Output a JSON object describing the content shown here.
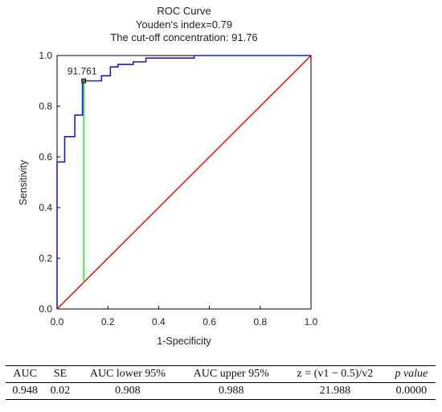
{
  "chart_data": {
    "type": "line",
    "title": "ROC Curve",
    "subtitle_lines": [
      "Youden's index=0.79",
      "The cut-off concentration: 91.76"
    ],
    "xlabel": "1-Specificity",
    "ylabel": "Sensitivity",
    "xlim": [
      0.0,
      1.0
    ],
    "ylim": [
      0.0,
      1.0
    ],
    "xticks": [
      "0.0",
      "0.2",
      "0.4",
      "0.6",
      "0.8",
      "1.0"
    ],
    "yticks": [
      "0.0",
      "0.2",
      "0.4",
      "0.6",
      "0.8",
      "1.0"
    ],
    "grid": false,
    "series": [
      {
        "color": "#1f1fbf",
        "x": [
          0,
          0,
          0.01,
          0.01,
          0.03,
          0.03,
          0.07,
          0.07,
          0.1,
          0.1,
          0.175,
          0.175,
          0.21,
          0.21,
          0.24,
          0.24,
          0.3,
          0.3,
          0.35,
          0.35,
          0.54,
          0.54,
          1.0
        ],
        "y": [
          0,
          0.58,
          0.58,
          0.58,
          0.58,
          0.68,
          0.68,
          0.765,
          0.765,
          0.9,
          0.9,
          0.92,
          0.92,
          0.955,
          0.955,
          0.965,
          0.965,
          0.975,
          0.975,
          0.99,
          0.99,
          1.0,
          1.0
        ]
      },
      {
        "color": "#e02020",
        "x": [
          0,
          1
        ],
        "y": [
          0,
          1
        ]
      }
    ],
    "cutoff": {
      "label": "91.761",
      "x": 0.105,
      "y": 0.9,
      "color": "#33dd33"
    }
  },
  "table": {
    "headers": [
      "AUC",
      "SE",
      "AUC lower 95%",
      "AUC upper 95%",
      "z = (v1 − 0.5)/v2",
      "p value"
    ],
    "row": [
      "0.948",
      "0.02",
      "0.908",
      "0.988",
      "21.988",
      "0.0000"
    ]
  }
}
